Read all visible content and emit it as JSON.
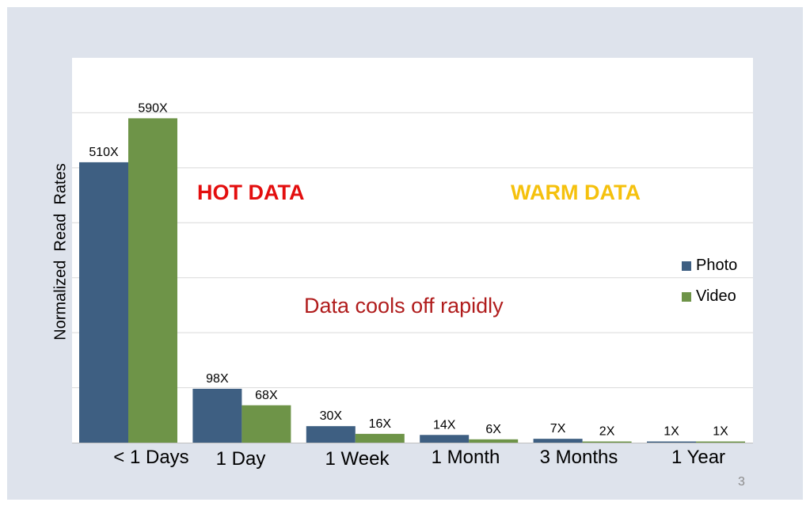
{
  "slide": {
    "page_number": "3"
  },
  "annotations": {
    "hot": "HOT DATA",
    "warm": "WARM DATA",
    "cools": "Data cools off rapidly"
  },
  "colors": {
    "photo": "#3e5f82",
    "video": "#6e9448",
    "hot": "#e30e0e",
    "warm": "#f5c10d",
    "cools": "#b01c1c",
    "background": "#dee3ec",
    "grid": "#d9d9d9"
  },
  "chart_data": {
    "type": "bar",
    "title": "",
    "xlabel": "",
    "ylabel": "Normalized  Read  Rates",
    "categories": [
      "< 1 Days",
      "1 Day",
      "1 Week",
      "1 Month",
      "3 Months",
      "1 Year"
    ],
    "series": [
      {
        "name": "Photo",
        "values": [
          510,
          98,
          30,
          14,
          7,
          1
        ],
        "labels": [
          "510X",
          "98X",
          "30X",
          "14X",
          "7X",
          "1X"
        ]
      },
      {
        "name": "Video",
        "values": [
          590,
          68,
          16,
          6,
          2,
          1
        ],
        "labels": [
          "590X",
          "68X",
          "16X",
          "6X",
          "2X",
          "1X"
        ]
      }
    ],
    "ylim": [
      0,
      700
    ],
    "y_gridlines": [
      100,
      200,
      300,
      400,
      500,
      600
    ],
    "y_tick_labels_shown": false,
    "grid": true,
    "legend": "right"
  }
}
